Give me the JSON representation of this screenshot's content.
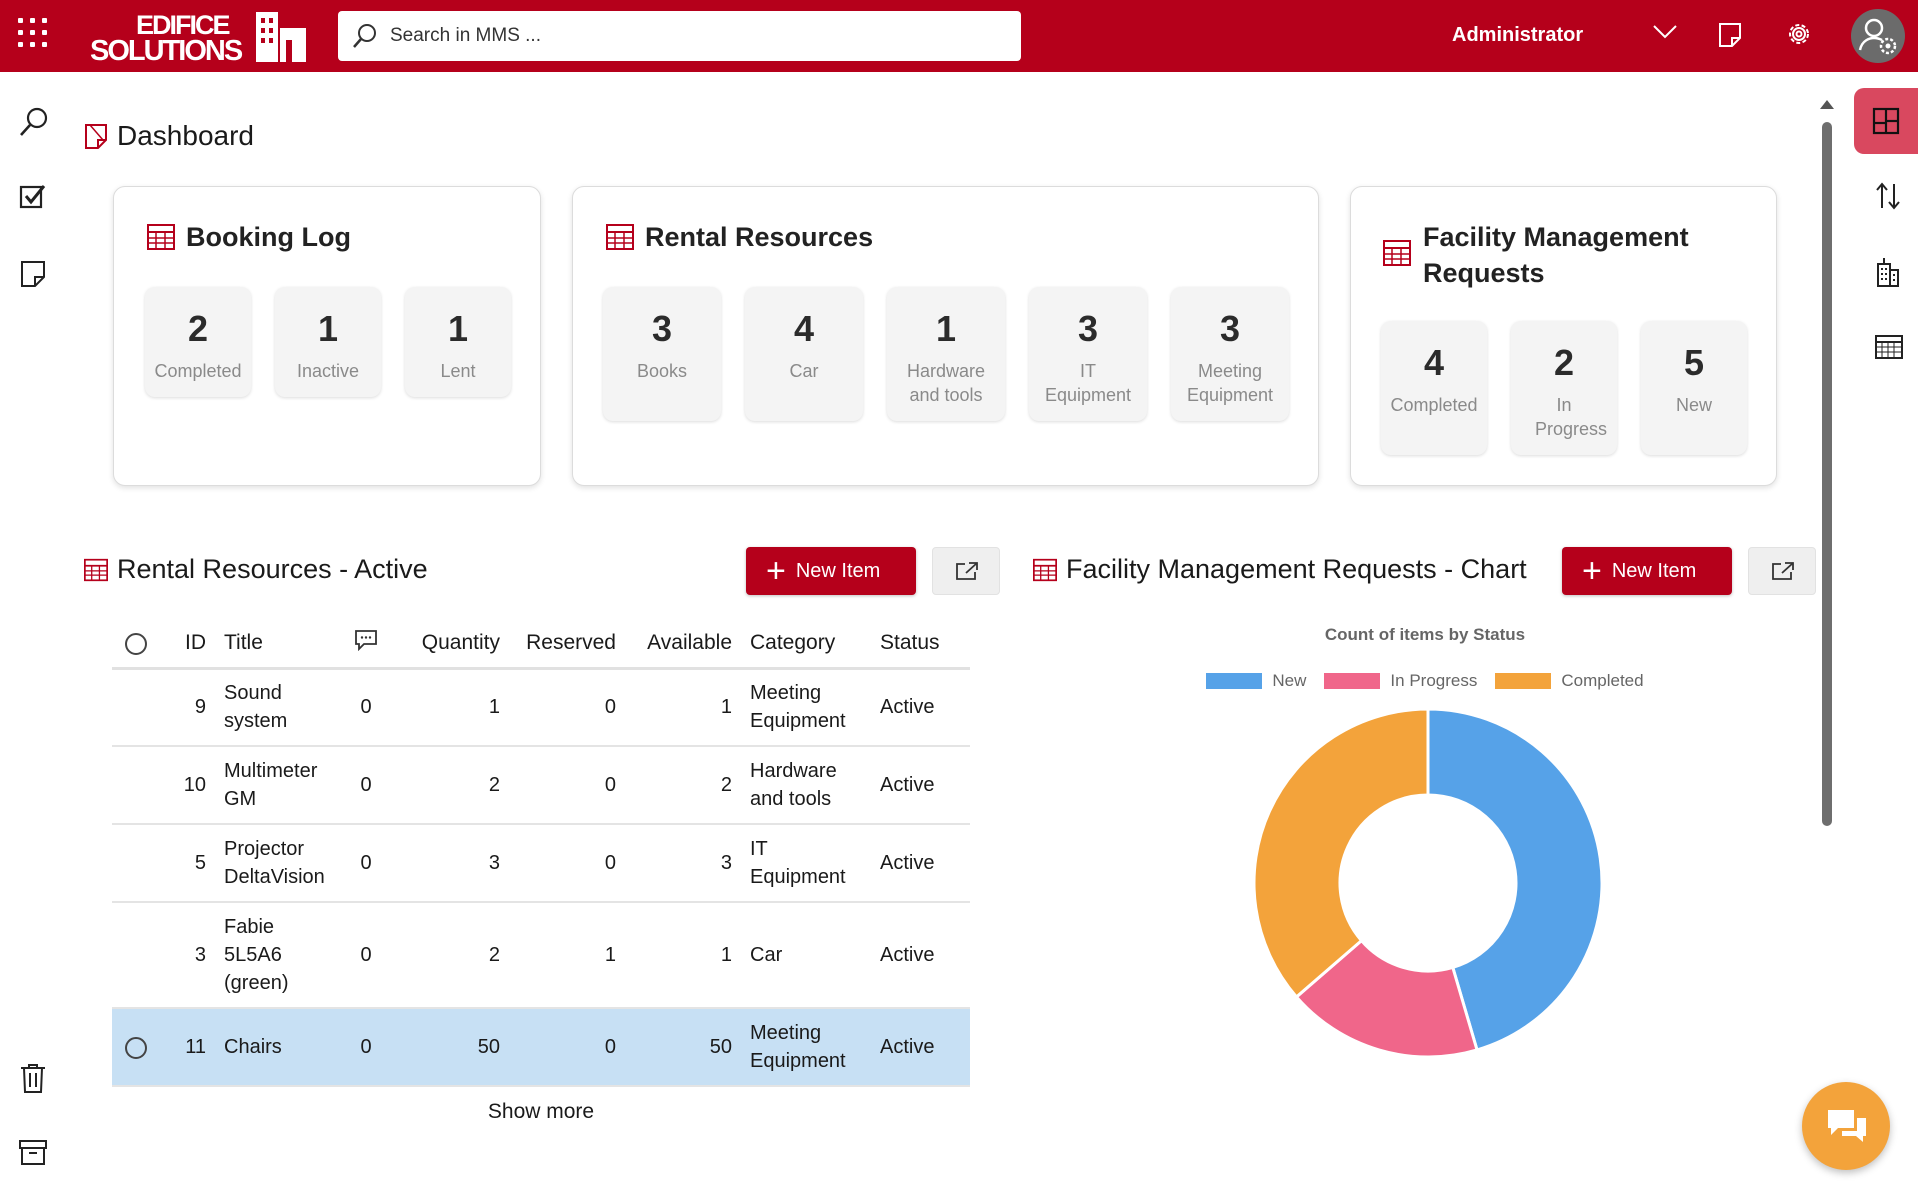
{
  "header": {
    "logo_text": "EDIFICE SOLUTIONS",
    "search_placeholder": "Search in MMS ...",
    "user_name": "Administrator",
    "icons": [
      "app-launcher-icon",
      "search-icon",
      "chevron-down-icon",
      "note-icon",
      "gear-icon",
      "user-settings-icon"
    ],
    "brand_color": "#b5001b"
  },
  "left_rail": {
    "icons": [
      "search-icon",
      "checkbox-icon",
      "note-icon",
      "trash-icon",
      "archive-icon"
    ]
  },
  "right_rail": {
    "icons": [
      "dashboard-icon",
      "sort-icon",
      "building-icon",
      "calendar-icon"
    ]
  },
  "page": {
    "title": "Dashboard"
  },
  "cards": {
    "booking_log": {
      "title": "Booking Log",
      "tiles": [
        {
          "value": "2",
          "label": "Completed"
        },
        {
          "value": "1",
          "label": "Inactive"
        },
        {
          "value": "1",
          "label": "Lent"
        }
      ]
    },
    "rental_resources": {
      "title": "Rental Resources",
      "tiles": [
        {
          "value": "3",
          "label": "Books"
        },
        {
          "value": "4",
          "label": "Car"
        },
        {
          "value": "1",
          "label": "Hardware and tools"
        },
        {
          "value": "3",
          "label": "IT Equipment"
        },
        {
          "value": "3",
          "label": "Meeting Equipment"
        }
      ]
    },
    "facility_requests": {
      "title": "Facility Management Requests",
      "tiles": [
        {
          "value": "4",
          "label": "Completed"
        },
        {
          "value": "2",
          "label": "In Progress"
        },
        {
          "value": "5",
          "label": "New"
        }
      ]
    }
  },
  "rental_active": {
    "title": "Rental Resources - Active",
    "new_item_label": "New Item",
    "columns": [
      "ID",
      "Title",
      "Quantity",
      "Reserved",
      "Available",
      "Category",
      "Status"
    ],
    "rows": [
      {
        "id": "9",
        "title": "Sound system",
        "comments": "0",
        "quantity": "1",
        "reserved": "0",
        "available": "1",
        "category": "Meeting Equipment",
        "status": "Active",
        "selected": false
      },
      {
        "id": "10",
        "title": "Multimeter GM",
        "comments": "0",
        "quantity": "2",
        "reserved": "0",
        "available": "2",
        "category": "Hardware and tools",
        "status": "Active",
        "selected": false
      },
      {
        "id": "5",
        "title": "Projector DeltaVision",
        "comments": "0",
        "quantity": "3",
        "reserved": "0",
        "available": "3",
        "category": "IT Equipment",
        "status": "Active",
        "selected": false
      },
      {
        "id": "3",
        "title": "Fabie 5L5A6 (green)",
        "comments": "0",
        "quantity": "2",
        "reserved": "1",
        "available": "1",
        "category": "Car",
        "status": "Active",
        "selected": false
      },
      {
        "id": "11",
        "title": "Chairs",
        "comments": "0",
        "quantity": "50",
        "reserved": "0",
        "available": "50",
        "category": "Meeting Equipment",
        "status": "Active",
        "selected": true
      }
    ],
    "show_more_label": "Show more"
  },
  "facility_chart": {
    "title": "Facility Management Requests - Chart",
    "new_item_label": "New Item"
  },
  "chart_data": {
    "type": "pie",
    "variant": "doughnut",
    "title": "Count of items by Status",
    "legend_position": "top",
    "categories": [
      "New",
      "In Progress",
      "Completed"
    ],
    "values": [
      5,
      2,
      4
    ],
    "colors": [
      "#56a2e8",
      "#f0668a",
      "#f3a33b"
    ]
  }
}
